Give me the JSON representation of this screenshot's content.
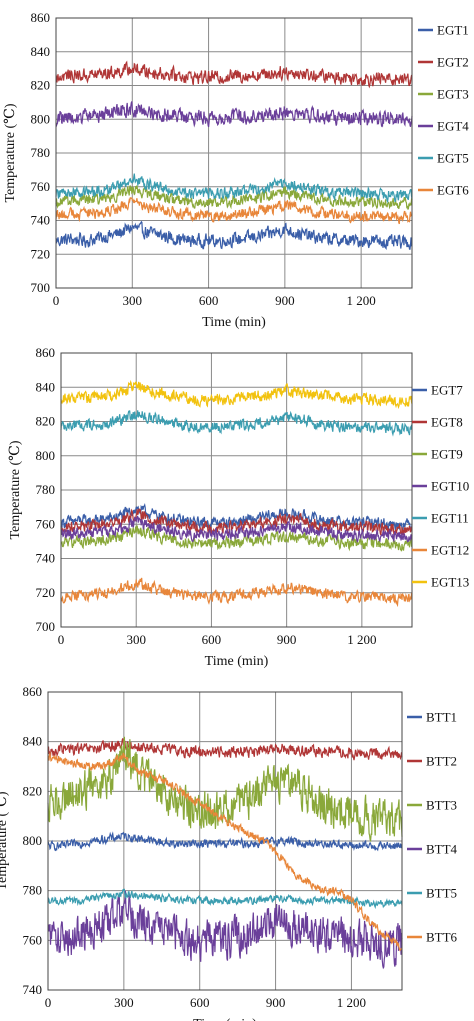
{
  "chart_data": [
    {
      "type": "line",
      "xlabel": "Time (min)",
      "ylabel": "Temperature (℃)",
      "xlim": [
        0,
        1400
      ],
      "ylim": [
        700,
        860
      ],
      "x_ticks": [
        0,
        300,
        600,
        900,
        1200
      ],
      "x_tick_labels": [
        "0",
        "300",
        "600",
        "900",
        "1 200"
      ],
      "y_ticks": [
        700,
        720,
        740,
        760,
        780,
        800,
        820,
        840,
        860
      ],
      "grid": true,
      "legend_position": "right",
      "x": [
        0,
        60,
        120,
        180,
        240,
        300,
        360,
        420,
        480,
        540,
        600,
        660,
        720,
        780,
        840,
        900,
        960,
        1020,
        1080,
        1140,
        1200,
        1260,
        1320,
        1380
      ],
      "series": [
        {
          "name": "EGT1",
          "color": "#3a5ea8",
          "noise": 3.5,
          "values": [
            728,
            729,
            728,
            730,
            732,
            736,
            733,
            731,
            729,
            728,
            728,
            728,
            729,
            730,
            732,
            735,
            732,
            730,
            729,
            728,
            728,
            728,
            727,
            727
          ]
        },
        {
          "name": "EGT2",
          "color": "#b03636",
          "noise": 3.5,
          "values": [
            825,
            826,
            826,
            827,
            828,
            830,
            828,
            827,
            826,
            825,
            825,
            825,
            826,
            826,
            827,
            828,
            827,
            826,
            825,
            825,
            824,
            824,
            824,
            824
          ]
        },
        {
          "name": "EGT3",
          "color": "#8aa83a",
          "noise": 3,
          "values": [
            751,
            752,
            752,
            753,
            755,
            759,
            756,
            754,
            752,
            751,
            751,
            751,
            752,
            753,
            755,
            757,
            755,
            753,
            752,
            751,
            751,
            751,
            750,
            750
          ]
        },
        {
          "name": "EGT4",
          "color": "#6a3f9a",
          "noise": 4,
          "values": [
            801,
            801,
            802,
            803,
            804,
            806,
            804,
            803,
            802,
            801,
            801,
            801,
            802,
            802,
            803,
            804,
            803,
            802,
            801,
            801,
            800,
            800,
            800,
            800
          ]
        },
        {
          "name": "EGT5",
          "color": "#3b9db0",
          "noise": 3,
          "values": [
            756,
            757,
            757,
            758,
            760,
            765,
            761,
            759,
            757,
            756,
            756,
            756,
            757,
            758,
            760,
            762,
            760,
            758,
            757,
            756,
            756,
            756,
            755,
            755
          ]
        },
        {
          "name": "EGT6",
          "color": "#e8863a",
          "noise": 3,
          "values": [
            743,
            744,
            744,
            745,
            747,
            751,
            748,
            746,
            744,
            743,
            743,
            743,
            744,
            745,
            747,
            749,
            747,
            745,
            744,
            743,
            743,
            743,
            742,
            742
          ]
        }
      ]
    },
    {
      "type": "line",
      "xlabel": "Time (min)",
      "ylabel": "Temperature (℃)",
      "xlim": [
        0,
        1400
      ],
      "ylim": [
        700,
        860
      ],
      "x_ticks": [
        0,
        300,
        600,
        900,
        1200
      ],
      "x_tick_labels": [
        "0",
        "300",
        "600",
        "900",
        "1 200"
      ],
      "y_ticks": [
        700,
        720,
        740,
        760,
        780,
        800,
        820,
        840,
        860
      ],
      "grid": true,
      "legend_position": "right",
      "x": [
        0,
        60,
        120,
        180,
        240,
        300,
        360,
        420,
        480,
        540,
        600,
        660,
        720,
        780,
        840,
        900,
        960,
        1020,
        1080,
        1140,
        1200,
        1260,
        1320,
        1380
      ],
      "series": [
        {
          "name": "EGT7",
          "color": "#3a5ea8",
          "noise": 3,
          "values": [
            761,
            762,
            762,
            763,
            765,
            769,
            766,
            764,
            762,
            761,
            761,
            761,
            762,
            763,
            765,
            766,
            765,
            763,
            762,
            761,
            761,
            761,
            760,
            760
          ]
        },
        {
          "name": "EGT8",
          "color": "#b03636",
          "noise": 3,
          "values": [
            758,
            759,
            759,
            760,
            762,
            766,
            763,
            761,
            759,
            758,
            758,
            758,
            759,
            760,
            761,
            763,
            762,
            760,
            759,
            758,
            758,
            758,
            757,
            757
          ]
        },
        {
          "name": "EGT9",
          "color": "#8aa83a",
          "noise": 3,
          "values": [
            749,
            750,
            750,
            751,
            753,
            757,
            754,
            752,
            750,
            749,
            749,
            749,
            750,
            750,
            752,
            753,
            752,
            751,
            750,
            749,
            749,
            749,
            748,
            748
          ]
        },
        {
          "name": "EGT10",
          "color": "#6a3f9a",
          "noise": 3,
          "values": [
            754,
            755,
            755,
            756,
            758,
            761,
            759,
            757,
            755,
            754,
            754,
            754,
            755,
            756,
            757,
            759,
            757,
            756,
            755,
            754,
            754,
            754,
            753,
            753
          ]
        },
        {
          "name": "EGT11",
          "color": "#3b9db0",
          "noise": 3,
          "values": [
            817,
            818,
            818,
            819,
            821,
            825,
            822,
            820,
            818,
            817,
            817,
            817,
            818,
            819,
            820,
            822,
            821,
            819,
            818,
            817,
            817,
            817,
            816,
            816
          ]
        },
        {
          "name": "EGT12",
          "color": "#e8863a",
          "noise": 3,
          "values": [
            718,
            719,
            719,
            720,
            722,
            726,
            723,
            721,
            719,
            718,
            718,
            718,
            719,
            720,
            721,
            723,
            722,
            720,
            719,
            718,
            718,
            718,
            717,
            717
          ]
        },
        {
          "name": "EGT13",
          "color": "#f2c20f",
          "noise": 3,
          "values": [
            833,
            834,
            834,
            835,
            837,
            841,
            838,
            836,
            834,
            833,
            833,
            833,
            834,
            835,
            836,
            838,
            837,
            835,
            834,
            833,
            833,
            833,
            832,
            832
          ]
        }
      ]
    },
    {
      "type": "line",
      "xlabel": "Time (min)",
      "ylabel": "Temperature (℃)",
      "xlim": [
        0,
        1400
      ],
      "ylim": [
        740,
        860
      ],
      "x_ticks": [
        0,
        300,
        600,
        900,
        1200
      ],
      "x_tick_labels": [
        "0",
        "300",
        "600",
        "900",
        "1 200"
      ],
      "y_ticks": [
        740,
        760,
        780,
        800,
        820,
        840,
        860
      ],
      "grid": true,
      "legend_position": "right",
      "x": [
        0,
        60,
        120,
        180,
        240,
        300,
        360,
        420,
        480,
        540,
        600,
        660,
        720,
        780,
        840,
        900,
        960,
        1020,
        1080,
        1140,
        1200,
        1260,
        1320,
        1380
      ],
      "series": [
        {
          "name": "BTT1",
          "color": "#3a5ea8",
          "noise": 1.5,
          "values": [
            798,
            798,
            799,
            800,
            801,
            802,
            801,
            800,
            799,
            799,
            799,
            799,
            799,
            799,
            799,
            800,
            800,
            799,
            799,
            799,
            798,
            798,
            798,
            798
          ]
        },
        {
          "name": "BTT2",
          "color": "#b03636",
          "noise": 2,
          "values": [
            836,
            837,
            837,
            837,
            838,
            839,
            838,
            837,
            837,
            836,
            836,
            836,
            836,
            836,
            836,
            837,
            837,
            836,
            836,
            836,
            835,
            835,
            835,
            835
          ]
        },
        {
          "name": "BTT3",
          "color": "#8aa83a",
          "noise": 7,
          "values": [
            815,
            818,
            820,
            822,
            826,
            835,
            828,
            822,
            818,
            815,
            812,
            812,
            814,
            816,
            820,
            824,
            825,
            820,
            816,
            813,
            811,
            810,
            809,
            808
          ]
        },
        {
          "name": "BTT4",
          "color": "#6a3f9a",
          "noise": 7,
          "values": [
            762,
            761,
            762,
            764,
            768,
            774,
            768,
            764,
            762,
            761,
            760,
            760,
            761,
            762,
            764,
            767,
            766,
            763,
            762,
            761,
            760,
            760,
            759,
            759
          ]
        },
        {
          "name": "BTT5",
          "color": "#3b9db0",
          "noise": 1.3,
          "values": [
            776,
            776,
            776,
            777,
            778,
            779,
            778,
            777,
            777,
            776,
            776,
            776,
            776,
            776,
            776,
            777,
            777,
            776,
            776,
            776,
            776,
            775,
            775,
            775
          ]
        },
        {
          "name": "BTT6",
          "color": "#e8863a",
          "noise": 1.5,
          "values": [
            834,
            832,
            831,
            830,
            831,
            834,
            828,
            826,
            823,
            819,
            815,
            811,
            807,
            804,
            801,
            796,
            788,
            784,
            780,
            780,
            776,
            769,
            763,
            758
          ]
        }
      ]
    }
  ]
}
